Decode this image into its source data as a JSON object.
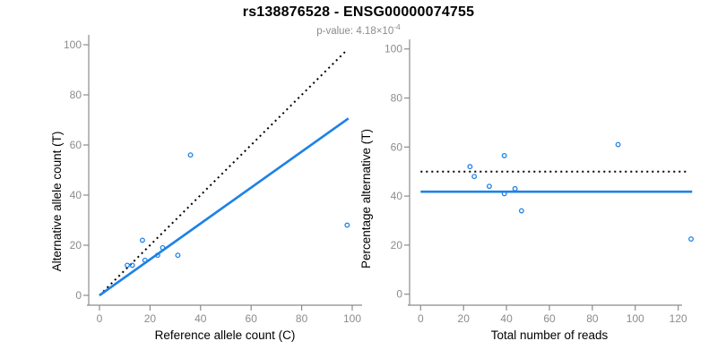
{
  "header": {
    "title": "rs138876528 - ENSG00000074755",
    "pvalue_prefix": "p-value: ",
    "pvalue_base": "4.18×10",
    "pvalue_exponent": "-4"
  },
  "colors": {
    "point_blue": "#1E82E6",
    "line_blue": "#1E82E6",
    "axis_gray": "#8C8C8C",
    "label_black": "#000000",
    "subtitle_gray": "#8C8C8C",
    "background": "#FFFFFF"
  },
  "chart_data": [
    {
      "type": "scatter",
      "name": "ref-vs-alt-counts",
      "title": "",
      "xlabel": "Reference allele count (C)",
      "ylabel": "Alternative allele count (T)",
      "xlim": [
        0,
        100
      ],
      "ylim": [
        0,
        100
      ],
      "xticks": [
        0,
        20,
        40,
        60,
        80,
        100
      ],
      "yticks": [
        0,
        20,
        40,
        60,
        80,
        100
      ],
      "grid": false,
      "legend": null,
      "marker": "open-circle",
      "points": [
        [
          11,
          12
        ],
        [
          13,
          12
        ],
        [
          17,
          22
        ],
        [
          18,
          14
        ],
        [
          23,
          16
        ],
        [
          25,
          19
        ],
        [
          31,
          16
        ],
        [
          36,
          56
        ],
        [
          98,
          28
        ]
      ],
      "lines": [
        {
          "name": "identity-line-y-equals-x",
          "style": "dotted",
          "color": "#000000",
          "from": [
            0,
            0
          ],
          "to": [
            97.5,
            97.5
          ]
        },
        {
          "name": "fitted-proportion-line",
          "style": "solid",
          "color": "#1E82E6",
          "from": [
            0,
            0
          ],
          "to": [
            98.5,
            70.6
          ]
        }
      ]
    },
    {
      "type": "scatter",
      "name": "reads-vs-percentage",
      "title": "",
      "xlabel": "Total number of reads",
      "ylabel": "Percentage alternative (T)",
      "xlim": [
        0,
        126
      ],
      "ylim": [
        0,
        100
      ],
      "xticks": [
        0,
        20,
        40,
        60,
        80,
        100,
        120
      ],
      "yticks": [
        0,
        20,
        40,
        60,
        80,
        100
      ],
      "grid": false,
      "legend": null,
      "marker": "open-circle",
      "points": [
        [
          23,
          52
        ],
        [
          25,
          48
        ],
        [
          32,
          44
        ],
        [
          39,
          56.5
        ],
        [
          39,
          41
        ],
        [
          44,
          43
        ],
        [
          47,
          34
        ],
        [
          92,
          61
        ],
        [
          126,
          22.5
        ]
      ],
      "lines": [
        {
          "name": "null-hypothesis-50pct-line",
          "style": "dotted",
          "color": "#000000",
          "from": [
            0,
            50
          ],
          "to": [
            124,
            50
          ]
        },
        {
          "name": "estimated-percentage-line",
          "style": "solid",
          "color": "#1E82E6",
          "from": [
            0,
            41.8
          ],
          "to": [
            126.5,
            41.8
          ]
        }
      ]
    }
  ]
}
